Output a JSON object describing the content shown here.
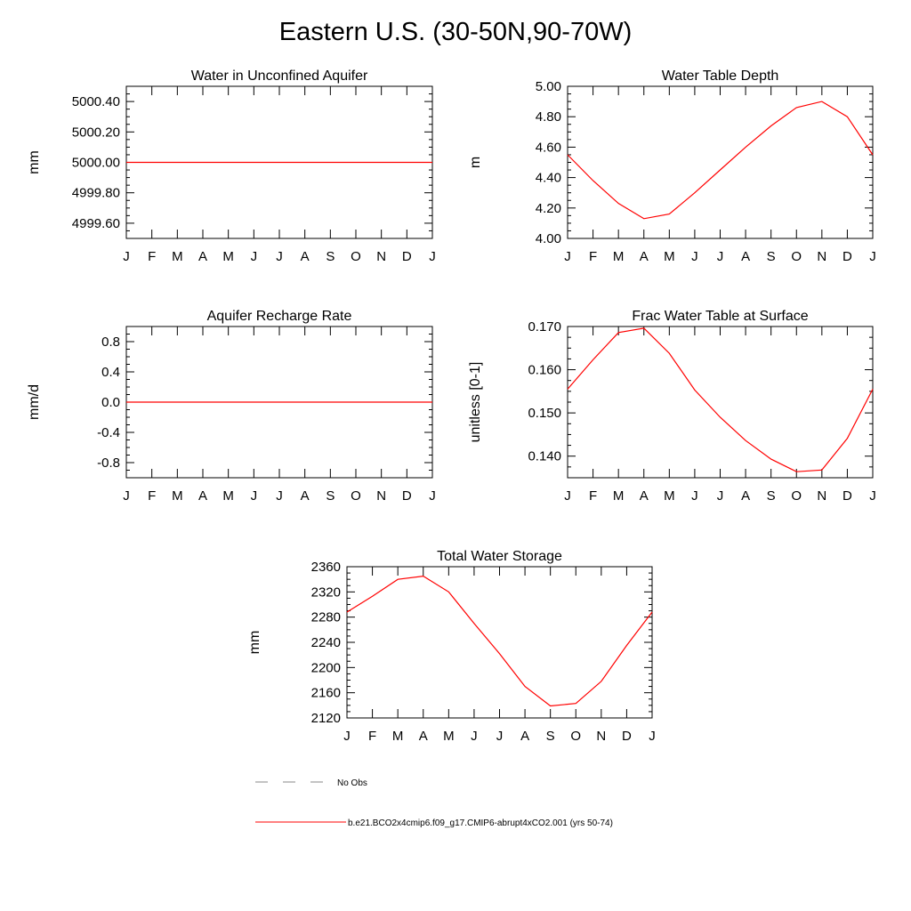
{
  "title": "Eastern U.S. (30-50N,90-70W)",
  "months": [
    "J",
    "F",
    "M",
    "A",
    "M",
    "J",
    "J",
    "A",
    "S",
    "O",
    "N",
    "D",
    "J"
  ],
  "colors": {
    "model": "#ff0000",
    "obs": "#888888",
    "axis": "#000000"
  },
  "chart_data": [
    {
      "type": "line",
      "title": "Water in Unconfined Aquifer",
      "ylabel": "mm",
      "ylim": [
        4999.5,
        5000.5
      ],
      "yticks": [
        4999.6,
        4999.8,
        5000.0,
        5000.2,
        5000.4
      ],
      "ytick_labels": [
        "4999.60",
        "4999.80",
        "5000.00",
        "5000.20",
        "5000.40"
      ],
      "series": [
        {
          "name": "b.e21.BCO2x4cmip6.f09_g17.CMIP6-abrupt4xCO2.001 (yrs 50-74)",
          "values": [
            5000,
            5000,
            5000,
            5000,
            5000,
            5000,
            5000,
            5000,
            5000,
            5000,
            5000,
            5000,
            5000
          ]
        }
      ]
    },
    {
      "type": "line",
      "title": "Water Table Depth",
      "ylabel": "m",
      "ylim": [
        4.0,
        5.0
      ],
      "yticks": [
        4.0,
        4.2,
        4.4,
        4.6,
        4.8,
        5.0
      ],
      "ytick_labels": [
        "4.00",
        "4.20",
        "4.40",
        "4.60",
        "4.80",
        "5.00"
      ],
      "series": [
        {
          "name": "b.e21.BCO2x4cmip6.f09_g17.CMIP6-abrupt4xCO2.001 (yrs 50-74)",
          "values": [
            4.55,
            4.38,
            4.23,
            4.13,
            4.16,
            4.3,
            4.45,
            4.6,
            4.74,
            4.86,
            4.9,
            4.8,
            4.55
          ]
        }
      ]
    },
    {
      "type": "line",
      "title": "Aquifer Recharge Rate",
      "ylabel": "mm/d",
      "ylim": [
        -1.0,
        1.0
      ],
      "yticks": [
        -0.8,
        -0.4,
        0.0,
        0.4,
        0.8
      ],
      "ytick_labels": [
        "-0.8",
        "-0.4",
        "0.0",
        "0.4",
        "0.8"
      ],
      "series": [
        {
          "name": "b.e21.BCO2x4cmip6.f09_g17.CMIP6-abrupt4xCO2.001 (yrs 50-74)",
          "values": [
            0,
            0,
            0,
            0,
            0,
            0,
            0,
            0,
            0,
            0,
            0,
            0,
            0
          ]
        }
      ]
    },
    {
      "type": "line",
      "title": "Frac Water Table at Surface",
      "ylabel": "unitless [0-1]",
      "ylim": [
        0.135,
        0.17
      ],
      "yticks": [
        0.14,
        0.15,
        0.16,
        0.17
      ],
      "ytick_labels": [
        "0.140",
        "0.150",
        "0.160",
        "0.170"
      ],
      "series": [
        {
          "name": "b.e21.BCO2x4cmip6.f09_g17.CMIP6-abrupt4xCO2.001 (yrs 50-74)",
          "values": [
            0.1555,
            0.1623,
            0.1686,
            0.1696,
            0.1638,
            0.1553,
            0.149,
            0.1436,
            0.1393,
            0.1364,
            0.1368,
            0.1441,
            0.1555
          ]
        }
      ]
    },
    {
      "type": "line",
      "title": "Total Water Storage",
      "ylabel": "mm",
      "ylim": [
        2120,
        2360
      ],
      "yticks": [
        2120,
        2160,
        2200,
        2240,
        2280,
        2320,
        2360
      ],
      "ytick_labels": [
        "2120",
        "2160",
        "2200",
        "2240",
        "2280",
        "2320",
        "2360"
      ],
      "series": [
        {
          "name": "b.e21.BCO2x4cmip6.f09_g17.CMIP6-abrupt4xCO2.001 (yrs 50-74)",
          "values": [
            2288,
            2313,
            2340,
            2345,
            2320,
            2270,
            2222,
            2170,
            2139,
            2143,
            2178,
            2235,
            2288
          ]
        }
      ]
    }
  ],
  "legend": {
    "obs_label": "No Obs",
    "model_label": "b.e21.BCO2x4cmip6.f09_g17.CMIP6-abrupt4xCO2.001 (yrs 50-74)"
  }
}
